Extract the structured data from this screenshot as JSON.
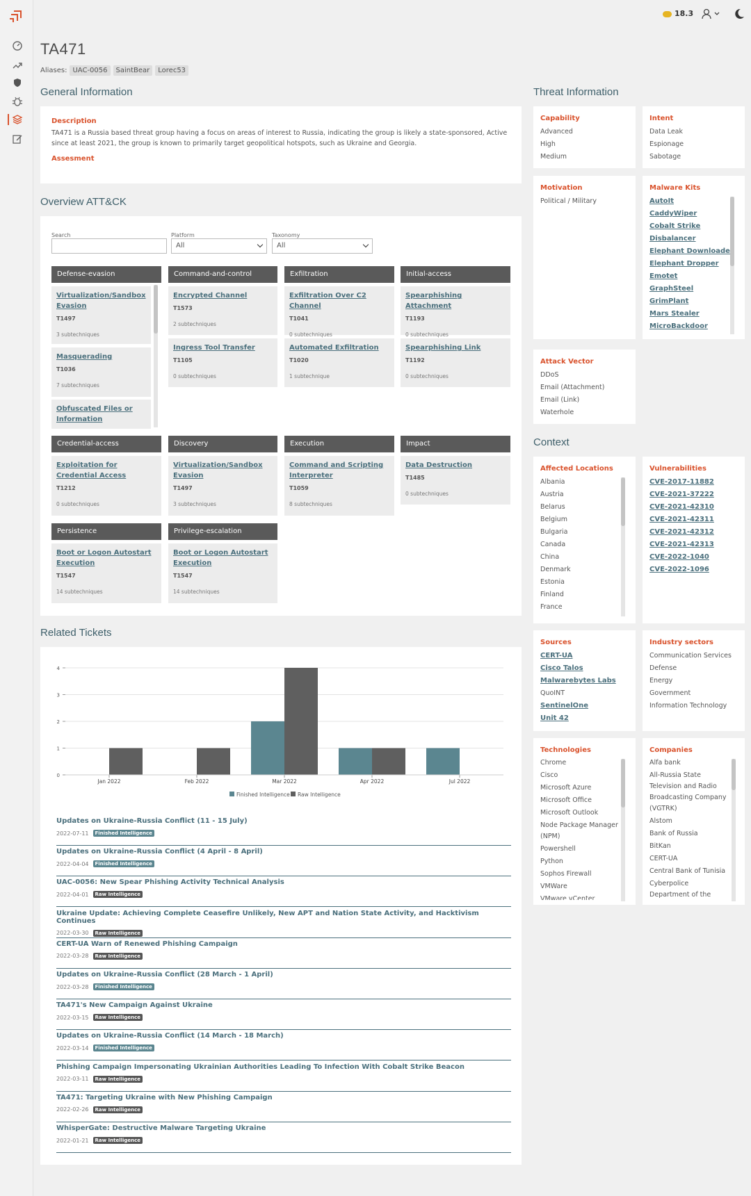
{
  "topbar": {
    "credits": "18.3"
  },
  "actor": {
    "name": "TA471",
    "aliases_label": "Aliases:",
    "aliases": [
      "UAC-0056",
      "SaintBear",
      "Lorec53"
    ]
  },
  "general": {
    "section_title": "General Information",
    "description_label": "Description",
    "description": "TA471 is a Russia based threat group having a focus on areas of interest to Russia, indicating the group is likely a state-sponsored, Active since at least 2021, the group is known to primarily target geopolitical hotspots, such as Ukraine and Georgia.",
    "assessment_label": "Assesment"
  },
  "attack": {
    "section_title": "Overview ATT&CK",
    "search_label": "Search",
    "search_value": "",
    "platform_label": "Platform",
    "platform_value": "All",
    "taxonomy_label": "Taxonomy",
    "taxonomy_value": "All",
    "tactics": [
      {
        "name": "Defense-evasion",
        "techniques": [
          {
            "name": "Virtualization/Sandbox Evasion",
            "id": "T1497",
            "sub": "3 subtechniques"
          },
          {
            "name": "Masquerading",
            "id": "T1036",
            "sub": "7 subtechniques"
          },
          {
            "name": "Obfuscated Files or Information",
            "id": "",
            "sub": ""
          }
        ]
      },
      {
        "name": "Command-and-control",
        "techniques": [
          {
            "name": "Encrypted Channel",
            "id": "T1573",
            "sub": "2 subtechniques"
          },
          {
            "name": "Ingress Tool Transfer",
            "id": "T1105",
            "sub": "0 subtechniques"
          }
        ]
      },
      {
        "name": "Exfiltration",
        "techniques": [
          {
            "name": "Exfiltration Over C2 Channel",
            "id": "T1041",
            "sub": "0 subtechniques"
          },
          {
            "name": "Automated Exfiltration",
            "id": "T1020",
            "sub": "1 subtechnique"
          }
        ]
      },
      {
        "name": "Initial-access",
        "techniques": [
          {
            "name": "Spearphishing Attachment",
            "id": "T1193",
            "sub": "0 subtechniques"
          },
          {
            "name": "Spearphishing Link",
            "id": "T1192",
            "sub": "0 subtechniques"
          }
        ]
      },
      {
        "name": "Credential-access",
        "techniques": [
          {
            "name": "Exploitation for Credential Access",
            "id": "T1212",
            "sub": "0 subtechniques"
          }
        ]
      },
      {
        "name": "Discovery",
        "techniques": [
          {
            "name": "Virtualization/Sandbox Evasion",
            "id": "T1497",
            "sub": "3 subtechniques"
          }
        ]
      },
      {
        "name": "Execution",
        "techniques": [
          {
            "name": "Command and Scripting Interpreter",
            "id": "T1059",
            "sub": "8 subtechniques"
          }
        ]
      },
      {
        "name": "Impact",
        "techniques": [
          {
            "name": "Data Destruction",
            "id": "T1485",
            "sub": "0 subtechniques"
          }
        ]
      },
      {
        "name": "Persistence",
        "techniques": [
          {
            "name": "Boot or Logon Autostart Execution",
            "id": "T1547",
            "sub": "14 subtechniques"
          }
        ]
      },
      {
        "name": "Privilege-escalation",
        "techniques": [
          {
            "name": "Boot or Logon Autostart Execution",
            "id": "T1547",
            "sub": "14 subtechniques"
          }
        ]
      }
    ]
  },
  "threat": {
    "section_title": "Threat Information",
    "capability": {
      "label": "Capability",
      "items": [
        "Advanced",
        "High",
        "Medium"
      ]
    },
    "intent": {
      "label": "Intent",
      "items": [
        "Data Leak",
        "Espionage",
        "Sabotage"
      ]
    },
    "motivation": {
      "label": "Motivation",
      "items": [
        "Political / Military"
      ]
    },
    "malware": {
      "label": "Malware Kits",
      "items": [
        "AutoIt",
        "CaddyWiper",
        "Cobalt Strike",
        "Disbalancer",
        "Elephant Downloader",
        "Elephant Dropper",
        "Emotet",
        "GraphSteel",
        "GrimPlant",
        "Mars Stealer",
        "MicroBackdoor"
      ]
    },
    "attack_vector": {
      "label": "Attack Vector",
      "items": [
        "DDoS",
        "Email (Attachment)",
        "Email (Link)",
        "Waterhole"
      ]
    }
  },
  "context": {
    "section_title": "Context",
    "locations": {
      "label": "Affected Locations",
      "items": [
        "Albania",
        "Austria",
        "Belarus",
        "Belgium",
        "Bulgaria",
        "Canada",
        "China",
        "Denmark",
        "Estonia",
        "Finland",
        "France"
      ]
    },
    "vulnerabilities": {
      "label": "Vulnerabilities",
      "items": [
        "CVE-2017-11882",
        "CVE-2021-37222",
        "CVE-2021-42310",
        "CVE-2021-42311",
        "CVE-2021-42312",
        "CVE-2021-42313",
        "CVE-2022-1040",
        "CVE-2022-1096"
      ]
    },
    "sources": {
      "label": "Sources",
      "items": [
        {
          "name": "CERT-UA",
          "link": true
        },
        {
          "name": "Cisco Talos",
          "link": true
        },
        {
          "name": "Malwarebytes Labs",
          "link": true
        },
        {
          "name": "QuoINT",
          "link": false
        },
        {
          "name": "SentinelOne",
          "link": true
        },
        {
          "name": "Unit 42",
          "link": true
        }
      ]
    },
    "industry": {
      "label": "Industry sectors",
      "items": [
        "Communication Services",
        "Defense",
        "Energy",
        "Government",
        "Information Technology"
      ]
    },
    "technologies": {
      "label": "Technologies",
      "items": [
        "Chrome",
        "Cisco",
        "Microsoft Azure",
        "Microsoft Office",
        "Microsoft Outlook",
        "Node Package Manager (NPM)",
        "Powershell",
        "Python",
        "Sophos Firewall",
        "VMWare",
        "VMware vCenter Server"
      ]
    },
    "companies": {
      "label": "Companies",
      "items": [
        "Alfa bank",
        "All-Russia State Television and Radio Broadcasting Company (VGTRK)",
        "Alstom",
        "Bank of Russia",
        "BitKan",
        "CERT-UA",
        "Central Bank of Tunisia",
        "Cyberpolice Department of the National Police of"
      ]
    }
  },
  "tickets": {
    "section_title": "Related Tickets",
    "items": [
      {
        "title": "Updates on Ukraine-Russia Conflict (11 - 15 July)",
        "date": "2022-07-11",
        "tag": "Finished Intelligence",
        "kind": "fi"
      },
      {
        "title": "Updates on Ukraine-Russia Conflict (4 April - 8 April)",
        "date": "2022-04-04",
        "tag": "Finished Intelligence",
        "kind": "fi"
      },
      {
        "title": "UAC-0056: New Spear Phishing Activity Technical Analysis",
        "date": "2022-04-01",
        "tag": "Raw Intelligence",
        "kind": "ri"
      },
      {
        "title": "Ukraine Update: Achieving Complete Ceasefire Unlikely, New APT and Nation State Activity, and Hacktivism Continues",
        "date": "2022-03-30",
        "tag": "Raw Intelligence",
        "kind": "ri"
      },
      {
        "title": "CERT-UA Warn of Renewed Phishing Campaign",
        "date": "2022-03-28",
        "tag": "Raw Intelligence",
        "kind": "ri"
      },
      {
        "title": "Updates on Ukraine-Russia Conflict (28 March - 1 April)",
        "date": "2022-03-28",
        "tag": "Finished Intelligence",
        "kind": "fi"
      },
      {
        "title": "TA471's New Campaign Against Ukraine",
        "date": "2022-03-15",
        "tag": "Raw Intelligence",
        "kind": "ri"
      },
      {
        "title": "Updates on Ukraine-Russia Conflict (14 March - 18 March)",
        "date": "2022-03-14",
        "tag": "Finished Intelligence",
        "kind": "fi"
      },
      {
        "title": "Phishing Campaign Impersonating Ukrainian Authorities Leading To Infection With Cobalt Strike Beacon",
        "date": "2022-03-11",
        "tag": "Raw Intelligence",
        "kind": "ri"
      },
      {
        "title": "TA471: Targeting Ukraine with New Phishing Campaign",
        "date": "2022-02-26",
        "tag": "Raw Intelligence",
        "kind": "ri"
      },
      {
        "title": "WhisperGate: Destructive Malware Targeting Ukraine",
        "date": "2022-01-21",
        "tag": "Raw Intelligence",
        "kind": "ri"
      }
    ]
  },
  "colors": {
    "accent": "#d9522c",
    "link": "#4a6f7c",
    "finished": "#5b8690",
    "raw": "#5f5f5f"
  },
  "chart_data": {
    "type": "bar",
    "categories": [
      "Jan 2022",
      "Feb 2022",
      "Mar 2022",
      "Apr 2022",
      "Jul 2022"
    ],
    "series": [
      {
        "name": "Finished Intelligence",
        "values": [
          0,
          0,
          2,
          1,
          1
        ]
      },
      {
        "name": "Raw Intelligence",
        "values": [
          1,
          1,
          4,
          1,
          0
        ]
      }
    ],
    "ylim": [
      0,
      4
    ],
    "yticks": [
      "0",
      "1",
      "2",
      "3",
      "4"
    ],
    "grid": true,
    "legend": "bottom"
  }
}
